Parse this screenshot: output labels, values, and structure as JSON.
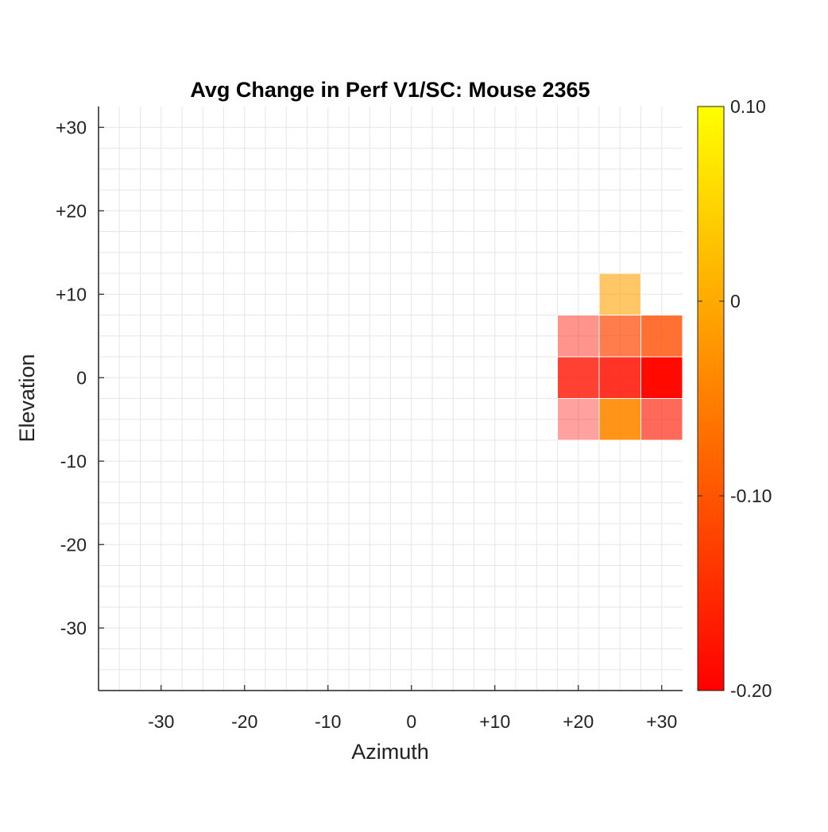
{
  "chart_data": {
    "type": "heatmap",
    "title": "Avg Change in Perf V1/SC: Mouse 2365",
    "xlabel": "Azimuth",
    "ylabel": "Elevation",
    "xlim": [
      -37.5,
      32.5
    ],
    "ylim": [
      -37.5,
      32.5
    ],
    "cell_size": 5,
    "xticks": [
      -30,
      -20,
      -10,
      0,
      10,
      20,
      30
    ],
    "xtick_labels": [
      "-30",
      "-20",
      "-10",
      "0",
      "+10",
      "+20",
      "+30"
    ],
    "yticks": [
      30,
      20,
      10,
      0,
      -10,
      -20,
      -30
    ],
    "ytick_labels": [
      "+30",
      "+20",
      "+10",
      "0",
      "-10",
      "-20",
      "-30"
    ],
    "grid": true,
    "colormap": "autumn",
    "clim": [
      -0.2,
      0.1
    ],
    "colorbar_ticks": [
      0.1,
      0,
      -0.1,
      -0.2
    ],
    "colorbar_tick_labels": [
      "0.10",
      "0",
      "-0.10",
      "-0.20"
    ],
    "cells": [
      {
        "azimuth": 25,
        "elevation": 10,
        "value": -0.01,
        "opacity": 0.6
      },
      {
        "azimuth": 20,
        "elevation": 5,
        "value": -0.18,
        "opacity": 0.45
      },
      {
        "azimuth": 25,
        "elevation": 5,
        "value": -0.12,
        "opacity": 0.7
      },
      {
        "azimuth": 30,
        "elevation": 5,
        "value": -0.11,
        "opacity": 0.8
      },
      {
        "azimuth": 20,
        "elevation": 0,
        "value": -0.18,
        "opacity": 0.8
      },
      {
        "azimuth": 25,
        "elevation": 0,
        "value": -0.18,
        "opacity": 0.85
      },
      {
        "azimuth": 30,
        "elevation": 0,
        "value": -0.19,
        "opacity": 1.0
      },
      {
        "azimuth": 20,
        "elevation": -5,
        "value": -0.19,
        "opacity": 0.38
      },
      {
        "azimuth": 25,
        "elevation": -5,
        "value": -0.04,
        "opacity": 0.9
      },
      {
        "azimuth": 30,
        "elevation": -5,
        "value": -0.17,
        "opacity": 0.65
      }
    ]
  }
}
